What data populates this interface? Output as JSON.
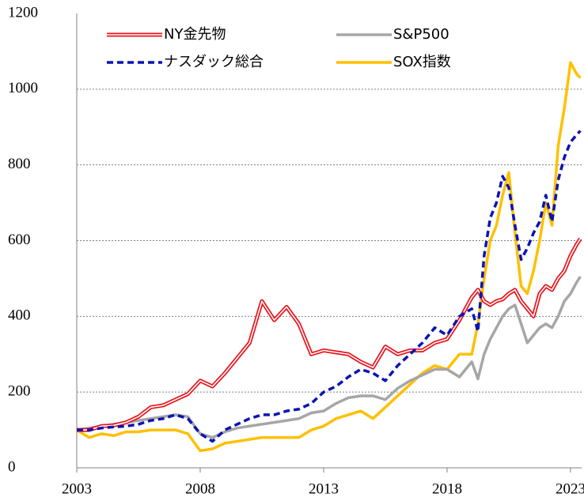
{
  "chart_data": {
    "type": "line",
    "x": [
      2003,
      2003.5,
      2004,
      2004.5,
      2005,
      2005.5,
      2006,
      2006.5,
      2007,
      2007.5,
      2008,
      2008.5,
      2009,
      2009.5,
      2010,
      2010.5,
      2011,
      2011.5,
      2012,
      2012.5,
      2013,
      2013.5,
      2014,
      2014.5,
      2015,
      2015.5,
      2016,
      2016.5,
      2017,
      2017.5,
      2018,
      2018.5,
      2019,
      2019.25,
      2019.5,
      2019.75,
      2020,
      2020.25,
      2020.5,
      2020.75,
      2021,
      2021.25,
      2021.5,
      2021.75,
      2022,
      2022.25,
      2022.5,
      2022.75,
      2023,
      2023.25,
      2023.4
    ],
    "series": [
      {
        "name": "NY金先物",
        "color": "#e8141c",
        "style": "double",
        "values": [
          100,
          100,
          110,
          112,
          120,
          135,
          160,
          165,
          180,
          195,
          230,
          215,
          250,
          290,
          330,
          440,
          390,
          425,
          380,
          300,
          310,
          305,
          300,
          280,
          265,
          320,
          300,
          310,
          310,
          330,
          340,
          390,
          450,
          470,
          440,
          430,
          440,
          445,
          460,
          470,
          440,
          420,
          400,
          460,
          480,
          470,
          500,
          520,
          560,
          590,
          605
        ]
      },
      {
        "name": "S&P500",
        "color": "#a6a6a6",
        "style": "solid",
        "values": [
          100,
          105,
          110,
          115,
          120,
          125,
          130,
          135,
          140,
          135,
          90,
          80,
          95,
          105,
          110,
          115,
          120,
          125,
          130,
          145,
          150,
          170,
          185,
          190,
          190,
          180,
          210,
          230,
          245,
          260,
          260,
          240,
          280,
          235,
          300,
          340,
          370,
          400,
          420,
          430,
          380,
          330,
          350,
          370,
          380,
          370,
          400,
          440,
          460,
          490,
          505
        ]
      },
      {
        "name": "ナスダック総合",
        "color": "#0a14b4",
        "style": "dashed",
        "values": [
          100,
          100,
          105,
          108,
          110,
          115,
          125,
          130,
          140,
          130,
          90,
          70,
          100,
          115,
          130,
          140,
          140,
          150,
          155,
          170,
          200,
          215,
          240,
          260,
          250,
          230,
          270,
          300,
          330,
          370,
          350,
          400,
          420,
          360,
          560,
          660,
          700,
          770,
          740,
          640,
          550,
          580,
          620,
          650,
          720,
          650,
          760,
          820,
          860,
          880,
          890
        ]
      },
      {
        "name": "SOX指数",
        "color": "#ffc000",
        "style": "solid",
        "values": [
          100,
          80,
          90,
          85,
          95,
          95,
          100,
          100,
          100,
          90,
          45,
          50,
          65,
          70,
          75,
          80,
          80,
          80,
          80,
          100,
          110,
          130,
          140,
          150,
          130,
          160,
          190,
          220,
          250,
          270,
          260,
          300,
          300,
          380,
          500,
          600,
          640,
          720,
          780,
          620,
          480,
          460,
          520,
          600,
          700,
          640,
          850,
          950,
          1070,
          1040,
          1030
        ]
      }
    ],
    "xlim": [
      2003,
      2023.45
    ],
    "xticks": [
      2003,
      2008,
      2013,
      2018,
      2023
    ],
    "ylim": [
      0,
      1200
    ],
    "yticks": [
      0,
      200,
      400,
      600,
      800,
      1000,
      1200
    ],
    "grid": true,
    "legend": "upper"
  }
}
